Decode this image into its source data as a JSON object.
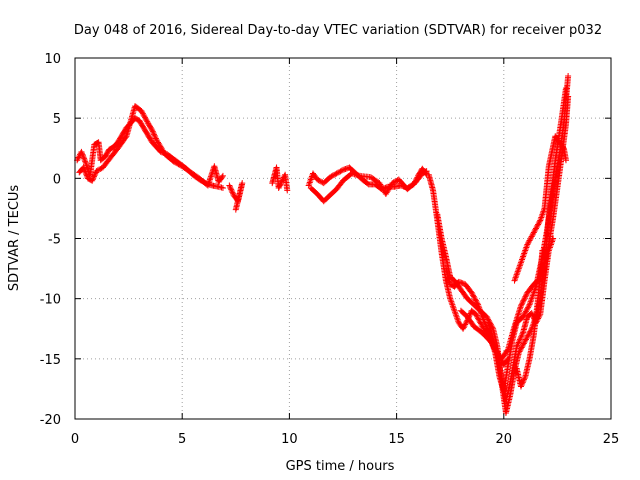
{
  "chart_data": {
    "type": "scatter",
    "title": "Day 048 of 2016, Sidereal Day-to-day VTEC variation (SDTVAR) for receiver p032",
    "xlabel": "GPS time / hours",
    "ylabel": "SDTVAR / TECUs",
    "xlim": [
      0,
      25
    ],
    "ylim": [
      -20,
      10
    ],
    "xticks": [
      "0",
      "5",
      "10",
      "15",
      "20",
      "25"
    ],
    "yticks": [
      "-20",
      "-15",
      "-10",
      "-5",
      "0",
      "5",
      "10"
    ],
    "grid": true,
    "marker": "plus",
    "colors": {
      "series": "#ff0000",
      "grid": "#a0a0a0"
    },
    "series": [
      {
        "segments": [
          [
            [
              0.1,
              1.5
            ],
            [
              0.3,
              2.2
            ],
            [
              0.5,
              1.3
            ],
            [
              0.7,
              0.2
            ],
            [
              0.9,
              2.8
            ],
            [
              1.1,
              3.0
            ],
            [
              1.2,
              1.5
            ],
            [
              1.4,
              1.8
            ],
            [
              1.6,
              2.4
            ],
            [
              1.8,
              2.6
            ],
            [
              2.0,
              3.0
            ],
            [
              2.2,
              3.6
            ],
            [
              2.4,
              4.2
            ],
            [
              2.6,
              4.6
            ],
            [
              2.8,
              5.0
            ],
            [
              3.0,
              4.8
            ],
            [
              3.2,
              4.2
            ],
            [
              3.4,
              3.6
            ],
            [
              3.6,
              3.0
            ],
            [
              3.8,
              2.6
            ],
            [
              4.0,
              2.2
            ],
            [
              4.3,
              2.0
            ],
            [
              4.6,
              1.6
            ],
            [
              4.9,
              1.2
            ],
            [
              5.2,
              0.8
            ],
            [
              5.5,
              0.3
            ],
            [
              5.8,
              -0.1
            ],
            [
              6.1,
              -0.4
            ],
            [
              6.4,
              -0.6
            ],
            [
              6.7,
              -0.7
            ],
            [
              6.9,
              -0.8
            ]
          ],
          [
            [
              0.2,
              0.5
            ],
            [
              0.4,
              0.9
            ],
            [
              0.6,
              0.0
            ],
            [
              0.8,
              -0.2
            ],
            [
              1.0,
              0.6
            ],
            [
              1.3,
              0.9
            ],
            [
              1.6,
              1.6
            ],
            [
              2.0,
              2.5
            ],
            [
              2.4,
              3.5
            ],
            [
              2.8,
              6.0
            ],
            [
              3.1,
              5.6
            ],
            [
              3.4,
              4.6
            ],
            [
              3.6,
              4.0
            ],
            [
              3.8,
              3.2
            ],
            [
              4.2,
              2.0
            ],
            [
              4.6,
              1.4
            ],
            [
              5.0,
              1.0
            ],
            [
              5.4,
              0.5
            ],
            [
              5.8,
              0.0
            ],
            [
              6.2,
              -0.6
            ],
            [
              6.5,
              1.0
            ],
            [
              6.7,
              -0.3
            ],
            [
              6.9,
              0.2
            ]
          ],
          [
            [
              7.2,
              -0.6
            ],
            [
              7.4,
              -1.4
            ],
            [
              7.6,
              -1.9
            ],
            [
              7.8,
              -0.4
            ],
            [
              7.5,
              -2.6
            ]
          ],
          [
            [
              9.2,
              -0.4
            ],
            [
              9.4,
              0.9
            ],
            [
              9.5,
              -0.8
            ],
            [
              9.6,
              -0.4
            ],
            [
              9.8,
              0.3
            ],
            [
              9.9,
              -1.0
            ]
          ],
          [
            [
              10.9,
              -0.6
            ],
            [
              11.1,
              0.4
            ],
            [
              11.3,
              -0.1
            ],
            [
              11.6,
              -0.4
            ],
            [
              11.9,
              0.1
            ],
            [
              12.2,
              0.4
            ],
            [
              12.5,
              0.7
            ],
            [
              12.8,
              0.9
            ],
            [
              13.1,
              0.4
            ],
            [
              13.4,
              -0.1
            ],
            [
              13.7,
              -0.5
            ],
            [
              14.0,
              -0.5
            ],
            [
              14.3,
              -0.9
            ],
            [
              14.6,
              -0.7
            ],
            [
              14.9,
              -0.7
            ],
            [
              15.2,
              -0.6
            ],
            [
              15.5,
              -0.8
            ],
            [
              15.8,
              -0.5
            ],
            [
              16.0,
              0.2
            ],
            [
              16.2,
              0.8
            ],
            [
              16.4,
              0.3
            ]
          ],
          [
            [
              11.0,
              -0.8
            ],
            [
              11.3,
              -1.3
            ],
            [
              11.6,
              -1.9
            ],
            [
              11.9,
              -1.4
            ],
            [
              12.2,
              -0.9
            ],
            [
              12.5,
              -0.2
            ],
            [
              12.9,
              0.4
            ],
            [
              13.3,
              0.2
            ],
            [
              13.8,
              0.1
            ],
            [
              14.2,
              -0.4
            ],
            [
              14.5,
              -1.3
            ],
            [
              14.8,
              -0.4
            ],
            [
              15.1,
              -0.1
            ],
            [
              15.5,
              -0.9
            ],
            [
              15.9,
              -0.3
            ],
            [
              16.2,
              0.4
            ],
            [
              16.4,
              0.6
            ]
          ],
          [
            [
              16.5,
              0.3
            ],
            [
              16.7,
              -1.0
            ],
            [
              16.9,
              -3.5
            ],
            [
              17.1,
              -6.2
            ],
            [
              17.3,
              -8.5
            ],
            [
              17.5,
              -10.0
            ],
            [
              17.7,
              -11.0
            ],
            [
              17.9,
              -12.0
            ],
            [
              18.1,
              -12.5
            ],
            [
              18.3,
              -11.8
            ],
            [
              18.5,
              -11.0
            ],
            [
              18.7,
              -11.3
            ],
            [
              19.0,
              -12.3
            ],
            [
              19.3,
              -13.2
            ],
            [
              19.6,
              -14.3
            ],
            [
              19.9,
              -15.0
            ],
            [
              20.2,
              -14.2
            ],
            [
              20.5,
              -12.3
            ],
            [
              20.8,
              -10.6
            ],
            [
              21.1,
              -9.5
            ],
            [
              21.4,
              -8.8
            ],
            [
              21.7,
              -8.3
            ],
            [
              22.0,
              -6.5
            ],
            [
              22.3,
              -3.3
            ],
            [
              22.6,
              0.5
            ],
            [
              22.9,
              4.5
            ],
            [
              23.0,
              6.8
            ]
          ],
          [
            [
              17.3,
              -7.5
            ],
            [
              17.5,
              -8.8
            ],
            [
              17.7,
              -9.0
            ],
            [
              17.9,
              -8.6
            ],
            [
              18.2,
              -8.8
            ],
            [
              18.5,
              -9.5
            ],
            [
              18.8,
              -10.5
            ],
            [
              19.0,
              -11.5
            ],
            [
              19.3,
              -12.8
            ],
            [
              19.6,
              -14.5
            ],
            [
              19.8,
              -16.5
            ],
            [
              20.0,
              -17.7
            ],
            [
              20.2,
              -15.5
            ],
            [
              20.4,
              -13.5
            ],
            [
              20.6,
              -12.0
            ],
            [
              20.9,
              -11.5
            ],
            [
              21.2,
              -10.5
            ],
            [
              21.5,
              -9.0
            ],
            [
              21.8,
              -6.5
            ],
            [
              22.0,
              -4.5
            ],
            [
              22.3,
              -1.0
            ],
            [
              22.6,
              2.0
            ],
            [
              22.8,
              4.5
            ],
            [
              23.0,
              8.5
            ]
          ],
          [
            [
              16.9,
              -3.0
            ],
            [
              17.1,
              -5.0
            ],
            [
              17.3,
              -6.5
            ],
            [
              17.5,
              -8.2
            ],
            [
              17.7,
              -8.5
            ],
            [
              17.9,
              -9.0
            ],
            [
              18.1,
              -9.5
            ],
            [
              18.3,
              -10.0
            ],
            [
              18.6,
              -10.5
            ],
            [
              18.9,
              -11.0
            ],
            [
              19.2,
              -11.5
            ],
            [
              19.5,
              -12.5
            ],
            [
              19.7,
              -14.0
            ],
            [
              19.9,
              -17.0
            ],
            [
              20.1,
              -19.5
            ],
            [
              20.3,
              -18.0
            ],
            [
              20.5,
              -16.0
            ],
            [
              20.7,
              -14.5
            ],
            [
              21.0,
              -13.5
            ],
            [
              21.3,
              -12.5
            ],
            [
              21.6,
              -11.0
            ],
            [
              21.9,
              -7.5
            ],
            [
              22.1,
              -3.0
            ],
            [
              22.4,
              1.5
            ],
            [
              22.7,
              5.0
            ],
            [
              22.9,
              7.5
            ]
          ],
          [
            [
              19.3,
              -12.0
            ],
            [
              19.6,
              -14.0
            ],
            [
              19.9,
              -16.5
            ],
            [
              20.1,
              -18.5
            ],
            [
              20.3,
              -17.0
            ],
            [
              20.6,
              -14.0
            ],
            [
              20.9,
              -12.8
            ],
            [
              21.1,
              -11.5
            ],
            [
              21.3,
              -11.2
            ],
            [
              21.5,
              -12.0
            ],
            [
              21.7,
              -11.3
            ],
            [
              21.9,
              -8.5
            ],
            [
              22.1,
              -6.0
            ],
            [
              22.3,
              -5.0
            ]
          ],
          [
            [
              20.5,
              -8.5
            ],
            [
              20.8,
              -7.0
            ],
            [
              21.1,
              -5.5
            ],
            [
              21.4,
              -4.5
            ],
            [
              21.7,
              -3.5
            ],
            [
              21.9,
              -2.5
            ],
            [
              22.1,
              1.0
            ],
            [
              22.4,
              3.5
            ],
            [
              22.6,
              3.0
            ],
            [
              22.8,
              2.5
            ],
            [
              22.9,
              1.5
            ]
          ],
          [
            [
              18.0,
              -11.0
            ],
            [
              18.3,
              -11.5
            ],
            [
              18.6,
              -12.3
            ],
            [
              18.9,
              -12.7
            ],
            [
              19.2,
              -13.2
            ],
            [
              19.5,
              -13.8
            ],
            [
              19.8,
              -14.8
            ],
            [
              20.0,
              -15.5
            ],
            [
              20.2,
              -15.0
            ]
          ],
          [
            [
              20.6,
              -15.8
            ],
            [
              20.8,
              -17.3
            ],
            [
              21.0,
              -16.5
            ],
            [
              21.2,
              -15.0
            ],
            [
              21.4,
              -13.0
            ],
            [
              21.6,
              -10.0
            ],
            [
              21.8,
              -6.0
            ]
          ]
        ]
      }
    ]
  }
}
